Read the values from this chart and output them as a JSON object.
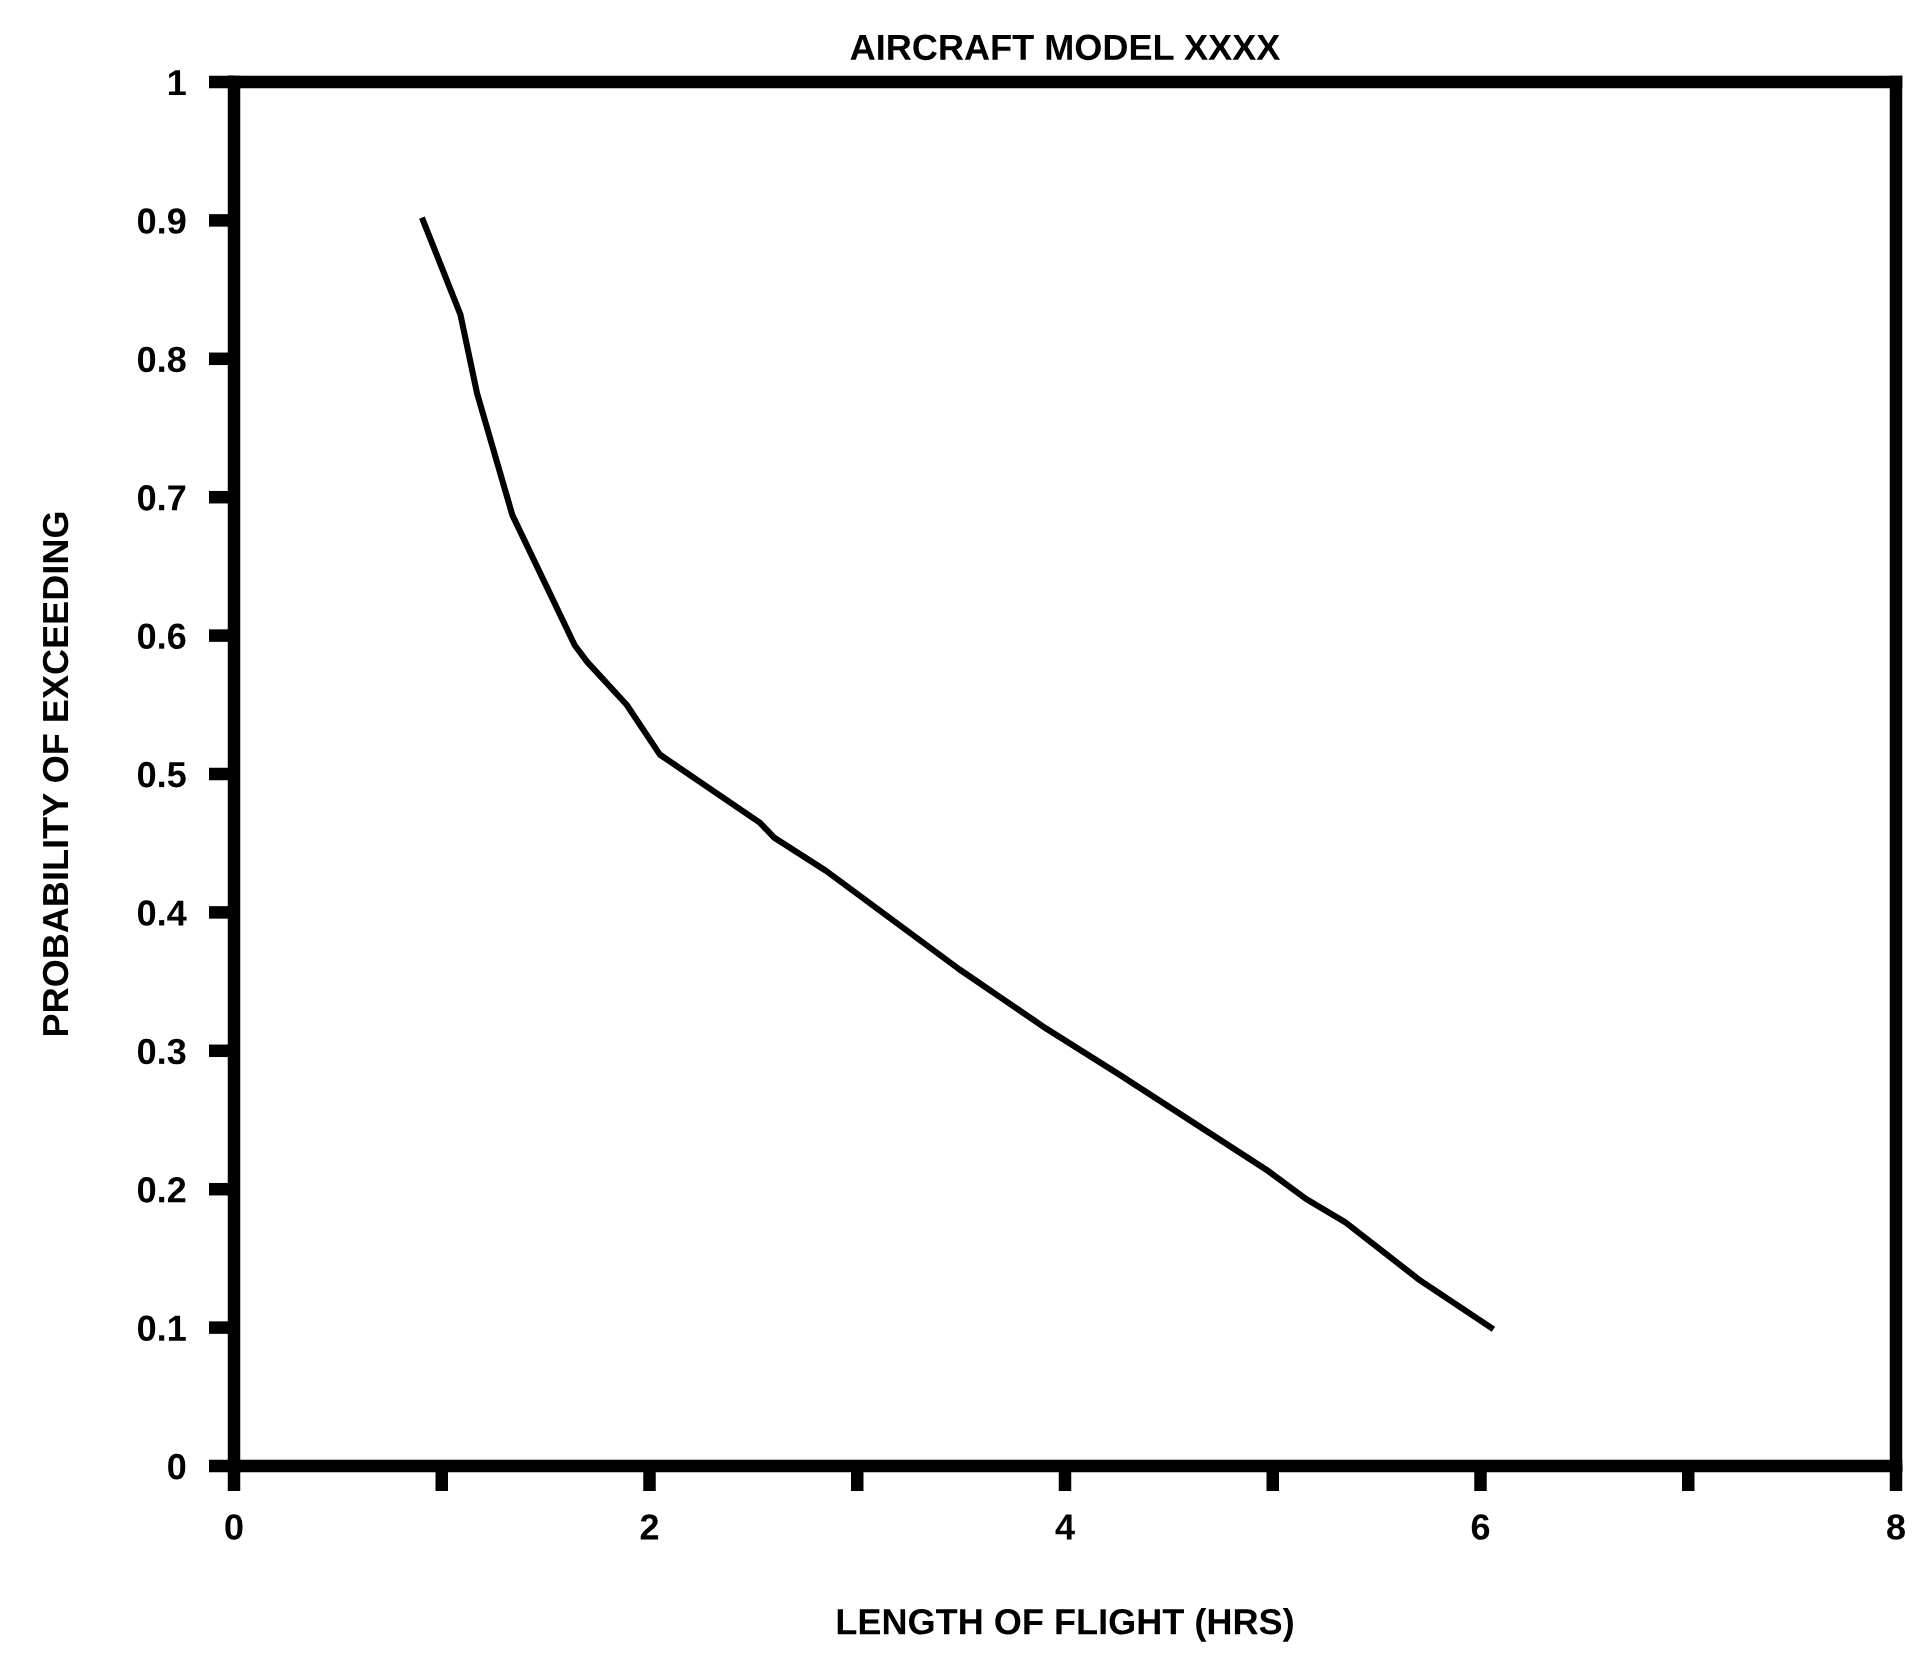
{
  "chart_data": {
    "type": "line",
    "title": "AIRCRAFT MODEL XXXX",
    "xlabel": "LENGTH OF FLIGHT (HRS)",
    "ylabel": "PROBABILITY OF EXCEEDING",
    "x": [
      0.91,
      1.09,
      1.17,
      1.34,
      1.64,
      1.7,
      1.89,
      2.05,
      2.53,
      2.6,
      2.85,
      3.49,
      3.91,
      4.26,
      4.97,
      5.16,
      5.35,
      5.71,
      6.05
    ],
    "series": [
      {
        "color": "#000000",
        "values": [
          0.9,
          0.832,
          0.775,
          0.687,
          0.593,
          0.581,
          0.55,
          0.514,
          0.465,
          0.454,
          0.43,
          0.359,
          0.316,
          0.283,
          0.214,
          0.193,
          0.176,
          0.134,
          0.1
        ]
      }
    ],
    "xlim": [
      0,
      8
    ],
    "ylim": [
      0,
      1
    ],
    "xticks": [
      0,
      {
        "value": 1,
        "label": null
      },
      2,
      {
        "value": 3,
        "label": null
      },
      4,
      {
        "value": 5,
        "label": null
      },
      6,
      {
        "value": 7,
        "label": null
      },
      8
    ],
    "yticks": [
      0,
      0.1,
      0.2,
      0.3,
      0.4,
      0.5,
      0.6,
      0.7,
      0.8,
      0.9,
      1
    ],
    "line_style": "solid",
    "grid": false,
    "legend": false
  }
}
